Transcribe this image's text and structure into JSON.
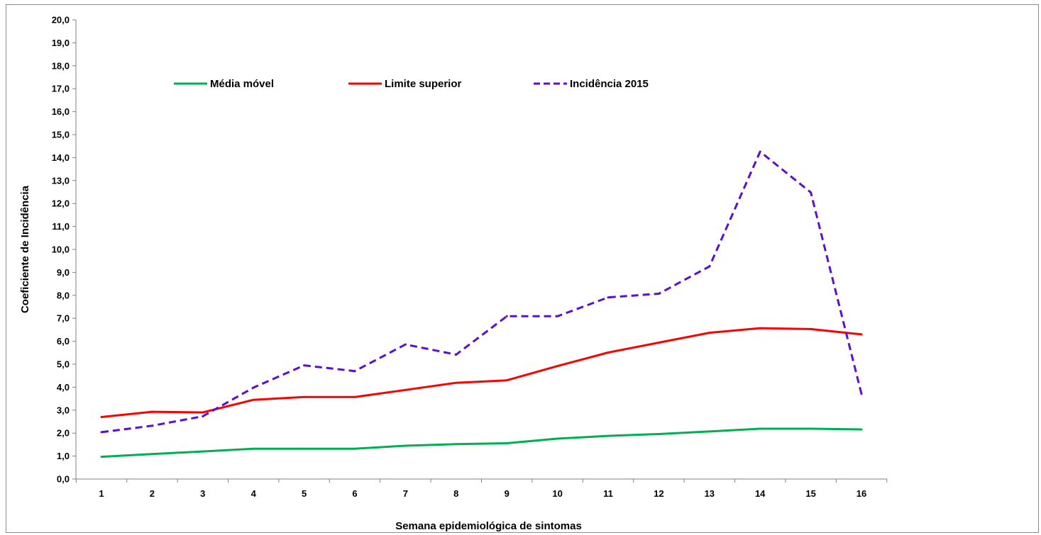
{
  "chart_data": {
    "type": "line",
    "title": "",
    "xlabel": "Semana epidemiológica de sintomas",
    "ylabel": "Coeficiente de Incidência",
    "categories": [
      "1",
      "2",
      "3",
      "4",
      "5",
      "6",
      "7",
      "8",
      "9",
      "10",
      "11",
      "12",
      "13",
      "14",
      "15",
      "16"
    ],
    "ylim": [
      0,
      20
    ],
    "y_ticks": [
      "0,0",
      "1,0",
      "2,0",
      "3,0",
      "4,0",
      "5,0",
      "6,0",
      "7,0",
      "8,0",
      "9,0",
      "10,0",
      "11,0",
      "12,0",
      "13,0",
      "14,0",
      "15,0",
      "16,0",
      "17,0",
      "18,0",
      "19,0",
      "20,0"
    ],
    "grid": false,
    "legend_position": "top-left",
    "series": [
      {
        "name": "Média móvel",
        "color": "#00b050",
        "dash": "solid",
        "values": [
          0.97,
          1.09,
          1.2,
          1.32,
          1.32,
          1.32,
          1.45,
          1.52,
          1.56,
          1.76,
          1.88,
          1.96,
          2.07,
          2.19,
          2.19,
          2.16
        ]
      },
      {
        "name": "Limite superior",
        "color": "#ff0000",
        "dash": "solid",
        "values": [
          2.7,
          2.93,
          2.9,
          3.45,
          3.57,
          3.57,
          3.88,
          4.19,
          4.3,
          4.92,
          5.51,
          5.94,
          6.37,
          6.57,
          6.53,
          6.3
        ]
      },
      {
        "name": "Incidência 2015",
        "color": "#5b0fcf",
        "dash": "dashed",
        "values": [
          2.04,
          2.32,
          2.73,
          3.98,
          4.95,
          4.7,
          5.86,
          5.42,
          7.09,
          7.09,
          7.91,
          8.07,
          9.26,
          14.26,
          12.48,
          3.71
        ]
      }
    ]
  }
}
